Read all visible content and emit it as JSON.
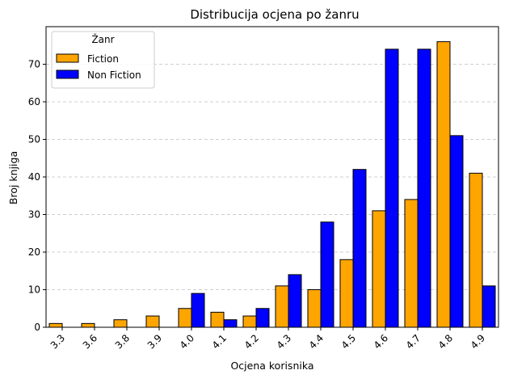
{
  "chart_data": {
    "type": "bar",
    "title": "Distribucija ocjena po žanru",
    "xlabel": "Ocjena korisnika",
    "ylabel": "Broj knjiga",
    "categories": [
      "3.3",
      "3.6",
      "3.8",
      "3.9",
      "4.0",
      "4.1",
      "4.2",
      "4.3",
      "4.4",
      "4.5",
      "4.6",
      "4.7",
      "4.8",
      "4.9"
    ],
    "series": [
      {
        "name": "Fiction",
        "color": "#FFA500",
        "values": [
          1,
          1,
          2,
          3,
          5,
          4,
          3,
          11,
          10,
          18,
          31,
          34,
          76,
          41
        ]
      },
      {
        "name": "Non Fiction",
        "color": "#0000FF",
        "values": [
          0,
          0,
          0,
          0,
          9,
          2,
          5,
          14,
          28,
          42,
          74,
          74,
          51,
          11
        ]
      }
    ],
    "ylim": [
      0,
      80
    ],
    "yticks": [
      0,
      10,
      20,
      30,
      40,
      50,
      60,
      70
    ],
    "grid": "horizontal dashed",
    "legend": {
      "title": "Žanr",
      "placement": "top-left"
    }
  }
}
